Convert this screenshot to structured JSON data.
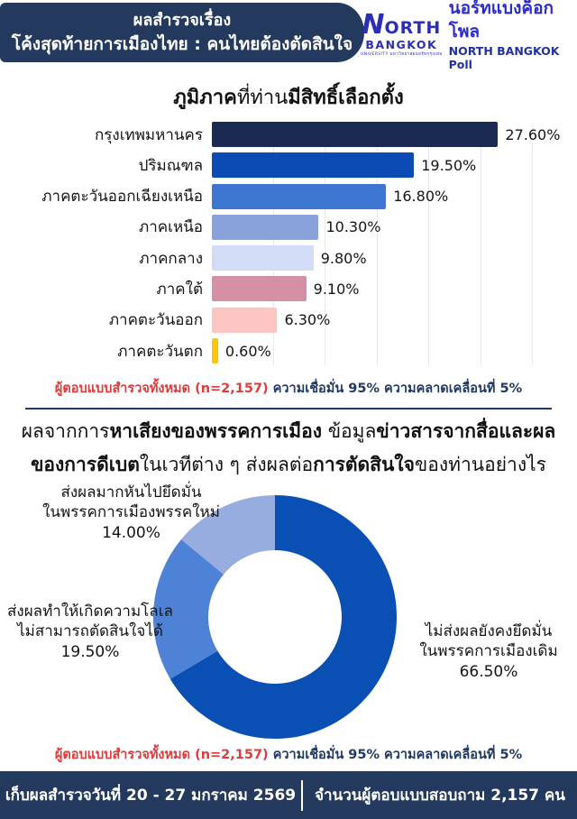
{
  "header": {
    "title_line1": "ผลสำรวจเรื่อง",
    "title_line2": "โค้งสุดท้ายการเมืองไทย : คนไทยต้องตัดสินใจ",
    "logo": {
      "n": "N",
      "orth": "ORTH",
      "bangkok": "BANGKOK",
      "tagline": "UNIVERSITY มหาวิทยาลัยนอร์ทกรุงเทพ",
      "poll_th": "นอร์ทแบงค็อกโพล",
      "poll_en": "NORTH BANGKOK Poll"
    }
  },
  "section1": {
    "title_segments": [
      {
        "text": "ภูมิภาค",
        "bold": true
      },
      {
        "text": "ที่ท่าน",
        "bold": false
      },
      {
        "text": "มีสิทธิ์เลือกตั้ง",
        "bold": true
      }
    ]
  },
  "note": {
    "red": "ผู้ตอบแบบสำรวจทั้งหมด (n=2,157)",
    "navy": " ความเชื่อมั่น 95% ความคลาดเคลื่อนที่ 5%"
  },
  "section2": {
    "title_line1_segments": [
      {
        "text": "ผลจากการ",
        "bold": false
      },
      {
        "text": "หาเสียงของพรรคการเมือง",
        "bold": true
      },
      {
        "text": " ข้อมูล",
        "bold": false
      },
      {
        "text": "ข่าวสารจากสื่อและผล",
        "bold": true
      }
    ],
    "title_line2_segments": [
      {
        "text": "ของการดีเบต",
        "bold": true
      },
      {
        "text": "ในเวทีต่าง ๆ ส่งผลต่อ",
        "bold": false
      },
      {
        "text": "การตัดสินใจ",
        "bold": true
      },
      {
        "text": "ของท่านอย่างไร",
        "bold": false
      }
    ]
  },
  "donut_labels": {
    "new_party": {
      "line1": "ส่งผลมากหันไปยึดมั่น",
      "line2": "ในพรรคการเมืองพรรคใหม่",
      "value": "14.00%"
    },
    "undecided": {
      "line1": "ส่งผลทำให้เกิดความโลเล",
      "line2": "ไม่สามารถตัดสินใจได้",
      "value": "19.50%"
    },
    "same_party": {
      "line1": "ไม่ส่งผลยังคงยึดมั่น",
      "line2": "ในพรรคการเมืองเดิม",
      "value": "66.50%"
    }
  },
  "footer": {
    "survey_period": "เก็บผลสำรวจวันที่ 20 - 27 มกราคม 2569",
    "respondents": "จำนวนผู้ตอบแบบสอบถาม 2,157 คน"
  },
  "colors": {
    "navy_band": "#24395e",
    "note_red": "#e23a3a",
    "note_navy": "#1f3864"
  },
  "chart_data": [
    {
      "type": "bar",
      "orientation": "horizontal",
      "title": "ภูมิภาคที่ท่านมีสิทธิ์เลือกตั้ง",
      "categories": [
        "กรุงเทพมหานคร",
        "ปริมณฑล",
        "ภาคตะวันออกเฉียงเหนือ",
        "ภาคเหนือ",
        "ภาคกลาง",
        "ภาคใต้",
        "ภาคตะวันออก",
        "ภาคตะวันตก"
      ],
      "values": [
        27.6,
        19.5,
        16.8,
        10.3,
        9.8,
        9.1,
        6.3,
        0.6
      ],
      "value_labels": [
        "27.60%",
        "19.50%",
        "16.80%",
        "10.30%",
        "9.80%",
        "9.10%",
        "6.30%",
        "0.60%"
      ],
      "colors": [
        "#1b2a52",
        "#0c4bb4",
        "#3d77d2",
        "#88a3da",
        "#d3dcf7",
        "#d690a3",
        "#fcc6c2",
        "#fcc505"
      ],
      "xlim": [
        0,
        30
      ],
      "grid_step": 5,
      "grid": true,
      "xlabel": "",
      "ylabel": ""
    },
    {
      "type": "pie",
      "donut": true,
      "title": "ผลจากการหาเสียงของพรรคการเมือง ข้อมูลข่าวสารจากสื่อและผลของการดีเบตในเวทีต่าง ๆ ส่งผลต่อการตัดสินใจของท่านอย่างไร",
      "labels": [
        "ไม่ส่งผลยังคงยึดมั่นในพรรคการเมืองเดิม",
        "ส่งผลทำให้เกิดความโลเลไม่สามารถตัดสินใจได้",
        "ส่งผลมากหันไปยึดมั่นในพรรคการเมืองพรรคใหม่"
      ],
      "values": [
        66.5,
        19.5,
        14.0
      ],
      "value_labels": [
        "66.50%",
        "19.50%",
        "14.00%"
      ],
      "colors": [
        "#0a4fb4",
        "#4d82d6",
        "#97acdf"
      ],
      "start_angle_deg": 0,
      "direction": "clockwise",
      "legend": "none"
    }
  ]
}
